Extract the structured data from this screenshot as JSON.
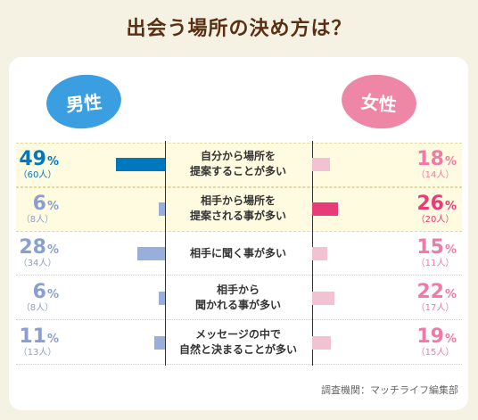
{
  "title": "出会う場所の決め方は？",
  "male_label": "男性",
  "female_label": "女性",
  "credit": "調査機関：マッチライフ編集部",
  "colors": {
    "male_dark": "#0078be",
    "male_light": "#99aedb",
    "female_dark": "#e83b7a",
    "female_light": "#f2c2d3",
    "male_text_dark": "#0078be",
    "male_text_light": "#8a9fcf",
    "female_text": "#f07aa5",
    "female_text_dark": "#e83b7a"
  },
  "chart_data": {
    "type": "bar",
    "categories": [
      "自分から場所を\n提案することが多い",
      "相手から場所を\n提案される事が多い",
      "相手に聞く事が多い",
      "相手から\n聞かれる事が多い",
      "メッセージの中で\n自然と決まることが多い"
    ],
    "series": [
      {
        "name": "男性",
        "values": [
          49,
          6,
          28,
          6,
          11
        ],
        "counts": [
          "（60人）",
          "（8人）",
          "（34人）",
          "（8人）",
          "（13人）"
        ]
      },
      {
        "name": "女性",
        "values": [
          18,
          26,
          15,
          22,
          19
        ],
        "counts": [
          "（14人）",
          "（20人）",
          "（11人）",
          "（17人）",
          "（15人）"
        ]
      }
    ],
    "unit": "%",
    "highlight": {
      "男性": 0,
      "女性": 1
    }
  }
}
